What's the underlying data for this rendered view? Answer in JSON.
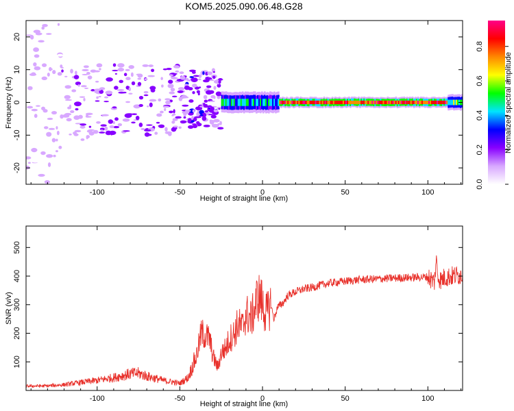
{
  "title": "KOM5.2025.090.06.48.G28",
  "chart_data": [
    {
      "type": "heatmap",
      "xlabel": "Height of straight line (km)",
      "ylabel": "Frequency (Hz)",
      "xlim": [
        -143,
        121
      ],
      "ylim": [
        -25,
        25
      ],
      "x_ticks": [
        -100,
        -50,
        0,
        50,
        100
      ],
      "y_ticks": [
        -20,
        -10,
        0,
        10,
        20
      ],
      "colorbar": {
        "label": "Normalized spectral amplitude",
        "range": [
          0,
          0.95
        ],
        "ticks": [
          "0.0",
          "0.2",
          "0.4",
          "0.6",
          "0.8"
        ],
        "colormap": [
          "#ffffff",
          "#d8a8ff",
          "#8800ff",
          "#0000ff",
          "#00e5ff",
          "#00ff00",
          "#ffff00",
          "#ff8800",
          "#ff0000",
          "#ff0088"
        ]
      },
      "blobs": [
        {
          "x": [
            -143,
            -122
          ],
          "y": [
            -25,
            25
          ],
          "amp": 0.08,
          "density": "sparse"
        },
        {
          "x": [
            -122,
            -100
          ],
          "y": [
            -12,
            12
          ],
          "amp": 0.12,
          "density": "moderate"
        },
        {
          "x": [
            -100,
            -50
          ],
          "y": [
            -10,
            12
          ],
          "amp": 0.18,
          "density": "dense"
        },
        {
          "x": [
            -50,
            -25
          ],
          "y": [
            -8,
            10
          ],
          "amp": 0.2,
          "density": "dense"
        },
        {
          "x": [
            -25,
            10
          ],
          "y": [
            -2,
            2
          ],
          "amp": 0.45,
          "density": "band"
        },
        {
          "x": [
            10,
            112
          ],
          "y": [
            -1,
            1
          ],
          "amp": 0.85,
          "density": "band"
        },
        {
          "x": [
            112,
            121
          ],
          "y": [
            -1,
            2
          ],
          "amp": 0.5,
          "density": "band"
        }
      ]
    },
    {
      "type": "line",
      "xlabel": "Height of straight line (km)",
      "ylabel": "SNR (v/v)",
      "xlim": [
        -143,
        121
      ],
      "ylim": [
        0,
        575
      ],
      "x_ticks": [
        -100,
        -50,
        0,
        50,
        100
      ],
      "y_ticks": [
        100,
        200,
        300,
        400,
        500
      ],
      "color": "#e8302a",
      "series": [
        {
          "x": [
            -143,
            -130,
            -120,
            -110,
            -100,
            -90,
            -80,
            -75,
            -70,
            -60,
            -50,
            -45,
            -40,
            -37,
            -34,
            -32,
            -30,
            -27,
            -25,
            -22,
            -20,
            -17,
            -15,
            -12,
            -10,
            -7,
            -5,
            -3,
            -1,
            1,
            3,
            5,
            7,
            9,
            11,
            13,
            15,
            18,
            20,
            25,
            30,
            35,
            40,
            50,
            60,
            70,
            80,
            90,
            100,
            104,
            105,
            106,
            108,
            110,
            115,
            121
          ],
          "y": [
            15,
            16,
            20,
            28,
            35,
            45,
            58,
            60,
            50,
            35,
            25,
            45,
            120,
            200,
            190,
            180,
            120,
            80,
            130,
            150,
            180,
            200,
            230,
            220,
            270,
            250,
            280,
            330,
            320,
            280,
            270,
            300,
            250,
            290,
            300,
            310,
            330,
            340,
            345,
            355,
            360,
            368,
            375,
            382,
            388,
            390,
            393,
            395,
            397,
            380,
            460,
            400,
            385,
            395,
            400,
            405
          ]
        }
      ]
    }
  ]
}
